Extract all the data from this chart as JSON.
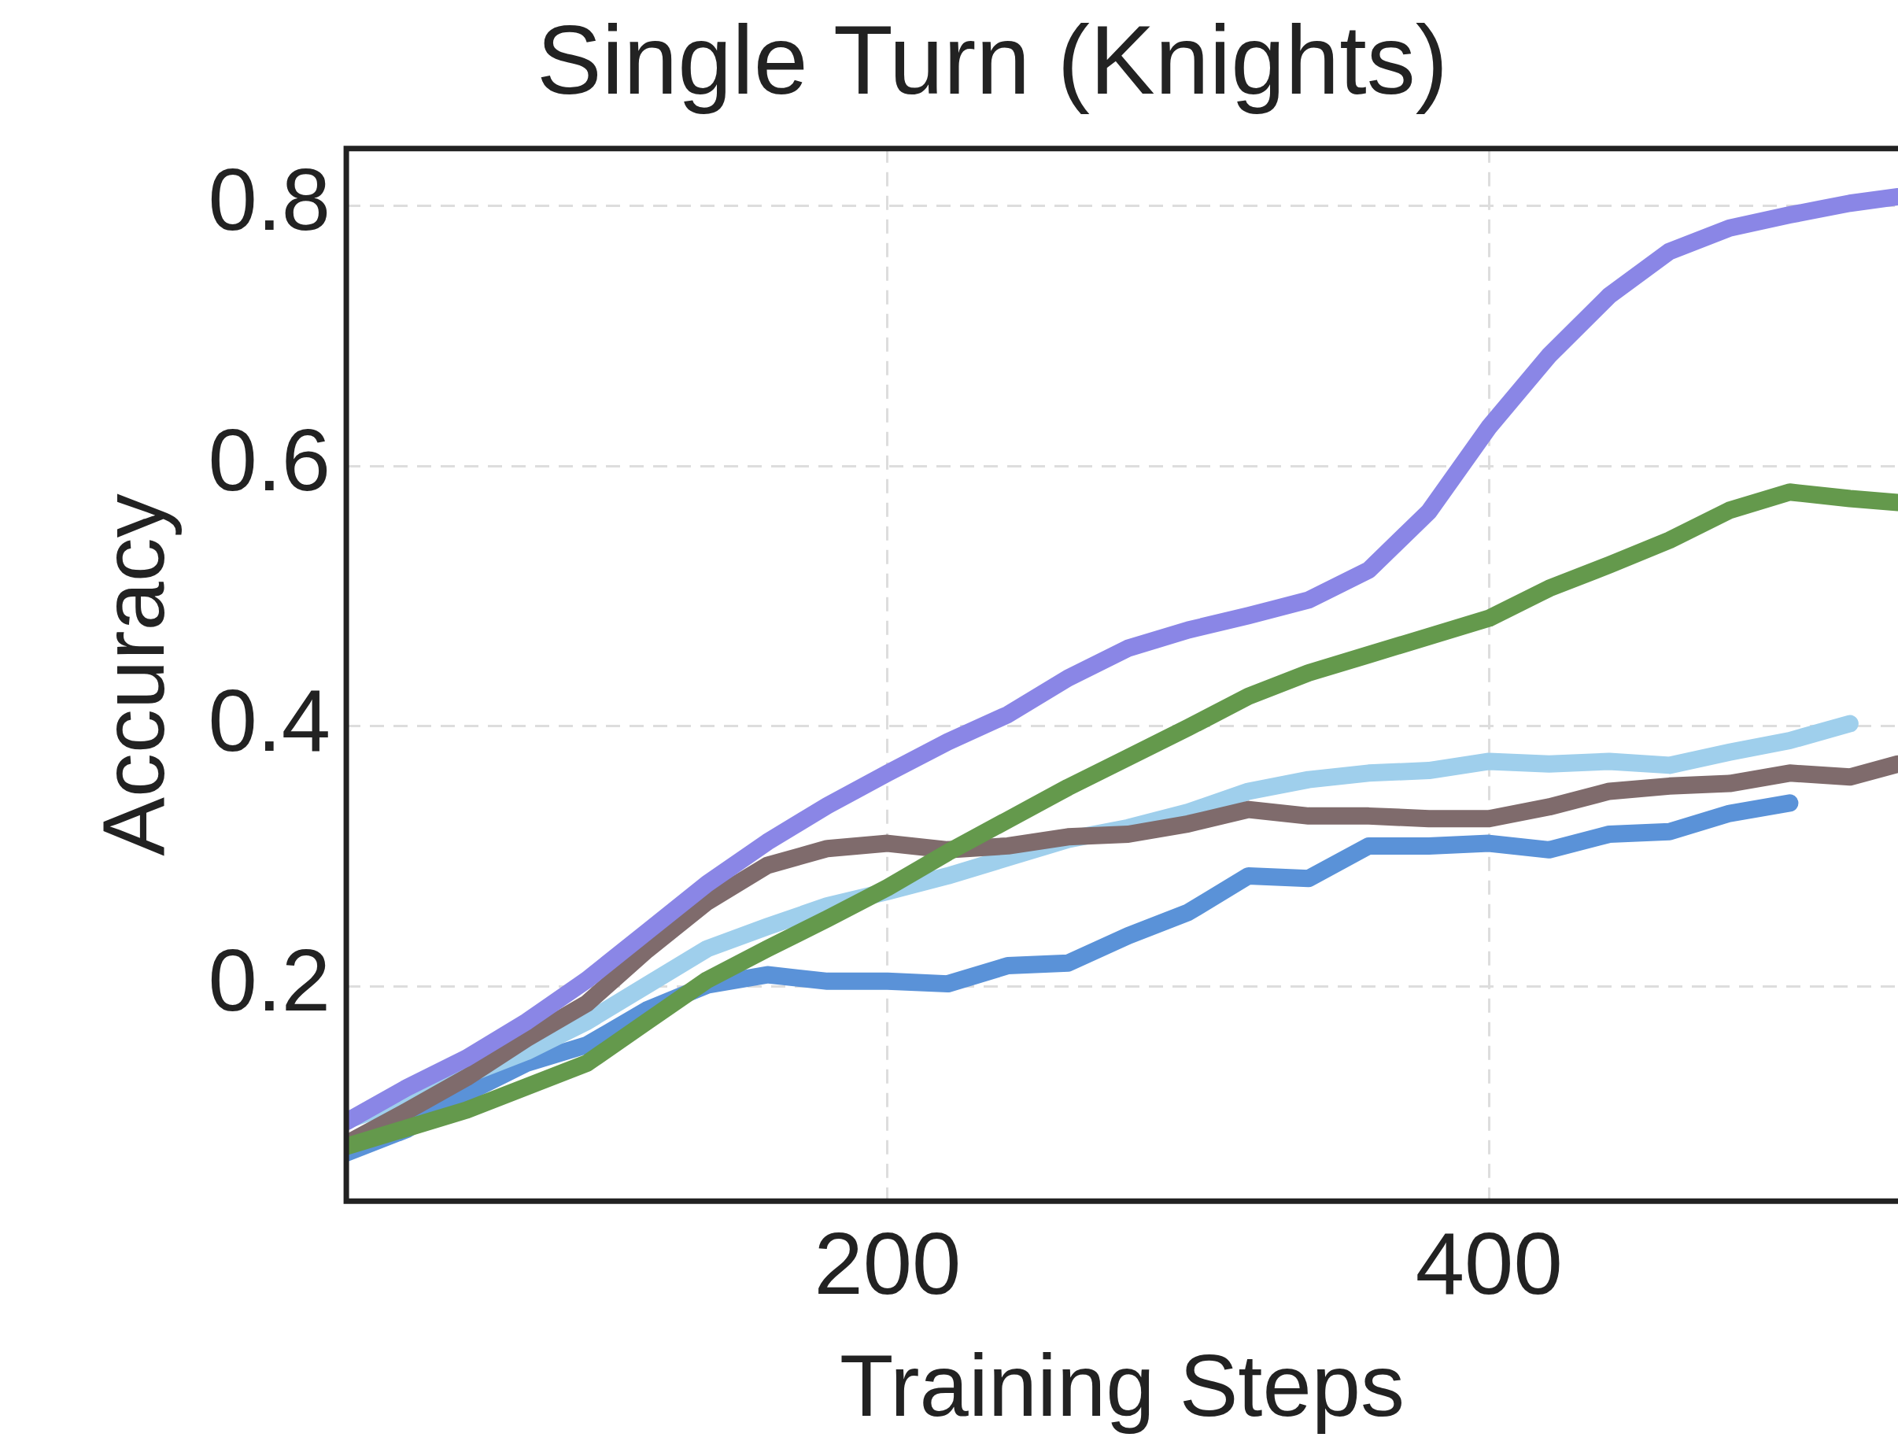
{
  "chart_data": {
    "type": "line",
    "title": "Single Turn (Knights)",
    "xlabel": "Training Steps",
    "ylabel": "Accuracy",
    "x": [
      20,
      40,
      60,
      80,
      100,
      120,
      140,
      160,
      180,
      200,
      220,
      240,
      260,
      280,
      300,
      320,
      340,
      360,
      380,
      400,
      420,
      440,
      460,
      480,
      500,
      520,
      536
    ],
    "series": [
      {
        "color": "#8a86e6",
        "values": [
          0.096,
          0.122,
          0.145,
          0.173,
          0.205,
          0.242,
          0.279,
          0.311,
          0.339,
          0.364,
          0.388,
          0.409,
          0.437,
          0.46,
          0.474,
          0.485,
          0.497,
          0.52,
          0.565,
          0.63,
          0.685,
          0.731,
          0.765,
          0.783,
          0.793,
          0.802,
          0.807
        ]
      },
      {
        "color": "#64994c",
        "values": [
          0.077,
          0.091,
          0.105,
          0.123,
          0.141,
          0.173,
          0.205,
          0.229,
          0.252,
          0.276,
          0.303,
          0.328,
          0.353,
          0.376,
          0.399,
          0.423,
          0.441,
          0.455,
          0.469,
          0.483,
          0.506,
          0.524,
          0.543,
          0.566,
          0.58,
          0.575,
          0.572
        ]
      },
      {
        "color": "#7f6b6c",
        "values": [
          0.079,
          0.104,
          0.13,
          0.16,
          0.187,
          0.228,
          0.265,
          0.293,
          0.306,
          0.31,
          0.305,
          0.308,
          0.315,
          0.317,
          0.325,
          0.336,
          0.331,
          0.331,
          0.329,
          0.329,
          0.338,
          0.35,
          0.354,
          0.356,
          0.364,
          0.361,
          0.371
        ]
      },
      {
        "color": "#9fcfec",
        "values": [
          0.097,
          0.113,
          0.132,
          0.15,
          0.173,
          0.201,
          0.229,
          0.246,
          0.262,
          0.273,
          0.285,
          0.299,
          0.313,
          0.322,
          0.334,
          0.35,
          0.359,
          0.364,
          0.366,
          0.373,
          0.371,
          0.373,
          0.37,
          0.38,
          0.389,
          0.402,
          null
        ]
      },
      {
        "color": "#5a92d8",
        "values": [
          0.072,
          0.09,
          0.118,
          0.141,
          0.155,
          0.182,
          0.201,
          0.209,
          0.204,
          0.204,
          0.202,
          0.216,
          0.218,
          0.239,
          0.257,
          0.285,
          0.283,
          0.308,
          0.308,
          0.31,
          0.305,
          0.317,
          0.319,
          0.333,
          0.341,
          null,
          null
        ]
      }
    ],
    "xlim": [
      20,
      536
    ],
    "ylim": [
      0.035,
      0.844
    ],
    "xticks": [
      200,
      400
    ],
    "yticks": [
      0.2,
      0.4,
      0.6,
      0.8
    ],
    "grid": true,
    "line_style": "solid",
    "marker": "none",
    "legend": false
  }
}
